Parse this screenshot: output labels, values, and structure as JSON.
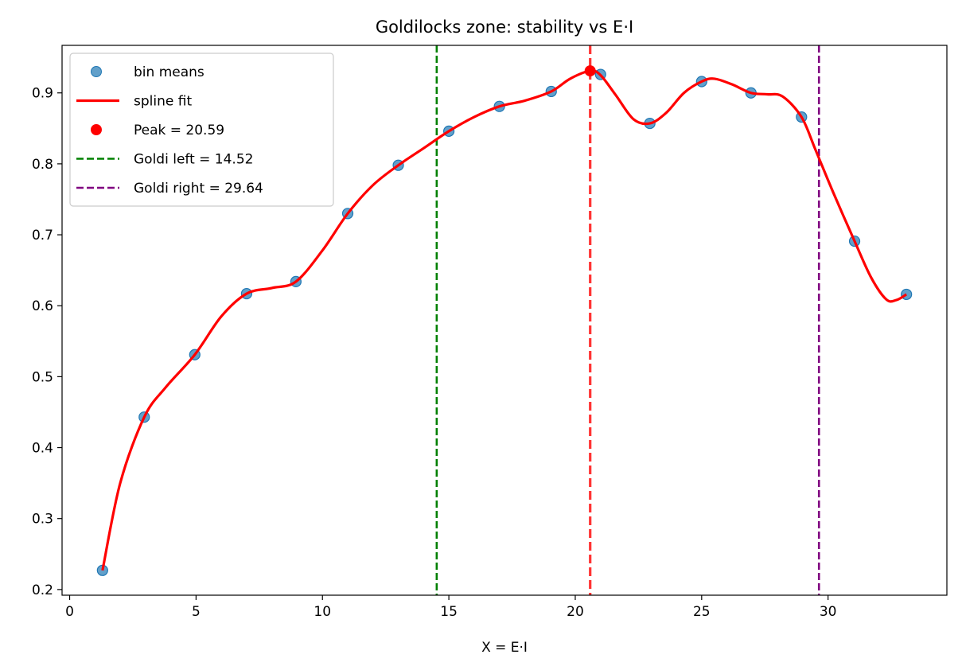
{
  "chart_data": {
    "type": "line",
    "title": "Goldilocks zone: stability vs E·I",
    "xlabel": "X = E·I",
    "ylabel": "",
    "xlim": [
      -0.3,
      34.7
    ],
    "ylim": [
      0.192,
      0.967
    ],
    "x_ticks": [
      0,
      5,
      10,
      15,
      20,
      25,
      30
    ],
    "y_ticks": [
      0.2,
      0.3,
      0.4,
      0.5,
      0.6,
      0.7,
      0.8,
      0.9
    ],
    "grid": false,
    "legend_position": "upper-left",
    "series": [
      {
        "name": "bin means",
        "kind": "scatter",
        "color": "#1f77b4",
        "x": [
          1.3,
          2.95,
          4.95,
          7.0,
          8.95,
          11.0,
          13.0,
          15.0,
          17.0,
          19.05,
          21.0,
          22.95,
          25.0,
          26.95,
          28.95,
          31.05,
          33.1
        ],
        "y": [
          0.227,
          0.443,
          0.531,
          0.617,
          0.634,
          0.73,
          0.798,
          0.846,
          0.881,
          0.902,
          0.926,
          0.857,
          0.916,
          0.9,
          0.866,
          0.691,
          0.616
        ]
      },
      {
        "name": "spline fit",
        "kind": "line",
        "color": "#ff0000",
        "x": [
          1.3,
          2.0,
          2.95,
          3.8,
          4.95,
          6.0,
          7.0,
          8.0,
          8.95,
          10.0,
          11.0,
          12.0,
          13.0,
          14.0,
          15.0,
          16.0,
          17.0,
          18.0,
          19.05,
          19.8,
          20.59,
          21.0,
          21.6,
          22.3,
          22.95,
          23.6,
          24.3,
          25.0,
          25.5,
          26.2,
          26.95,
          27.6,
          28.2,
          28.95,
          29.5,
          30.2,
          31.05,
          31.7,
          32.3,
          32.7,
          33.1
        ],
        "y": [
          0.227,
          0.35,
          0.443,
          0.485,
          0.531,
          0.585,
          0.617,
          0.625,
          0.634,
          0.678,
          0.73,
          0.77,
          0.798,
          0.822,
          0.846,
          0.866,
          0.881,
          0.889,
          0.902,
          0.92,
          0.931,
          0.925,
          0.897,
          0.863,
          0.857,
          0.872,
          0.9,
          0.916,
          0.92,
          0.912,
          0.9,
          0.898,
          0.895,
          0.866,
          0.82,
          0.76,
          0.691,
          0.64,
          0.609,
          0.608,
          0.616
        ]
      },
      {
        "name": "Peak = 20.59",
        "kind": "marker",
        "color": "#ff0000",
        "x": [
          20.59
        ],
        "y": [
          0.931
        ]
      }
    ],
    "vlines": [
      {
        "name": "Goldi left = 14.52",
        "x": 14.52,
        "color": "#008000",
        "in_legend": true
      },
      {
        "name": "Goldi right = 29.64",
        "x": 29.64,
        "color": "#800080",
        "in_legend": true
      },
      {
        "name": "",
        "x": 20.59,
        "color": "#ff3333",
        "in_legend": false
      }
    ],
    "legend": [
      "bin means",
      "spline fit",
      "Peak = 20.59",
      "Goldi left = 14.52",
      "Goldi right = 29.64"
    ]
  }
}
